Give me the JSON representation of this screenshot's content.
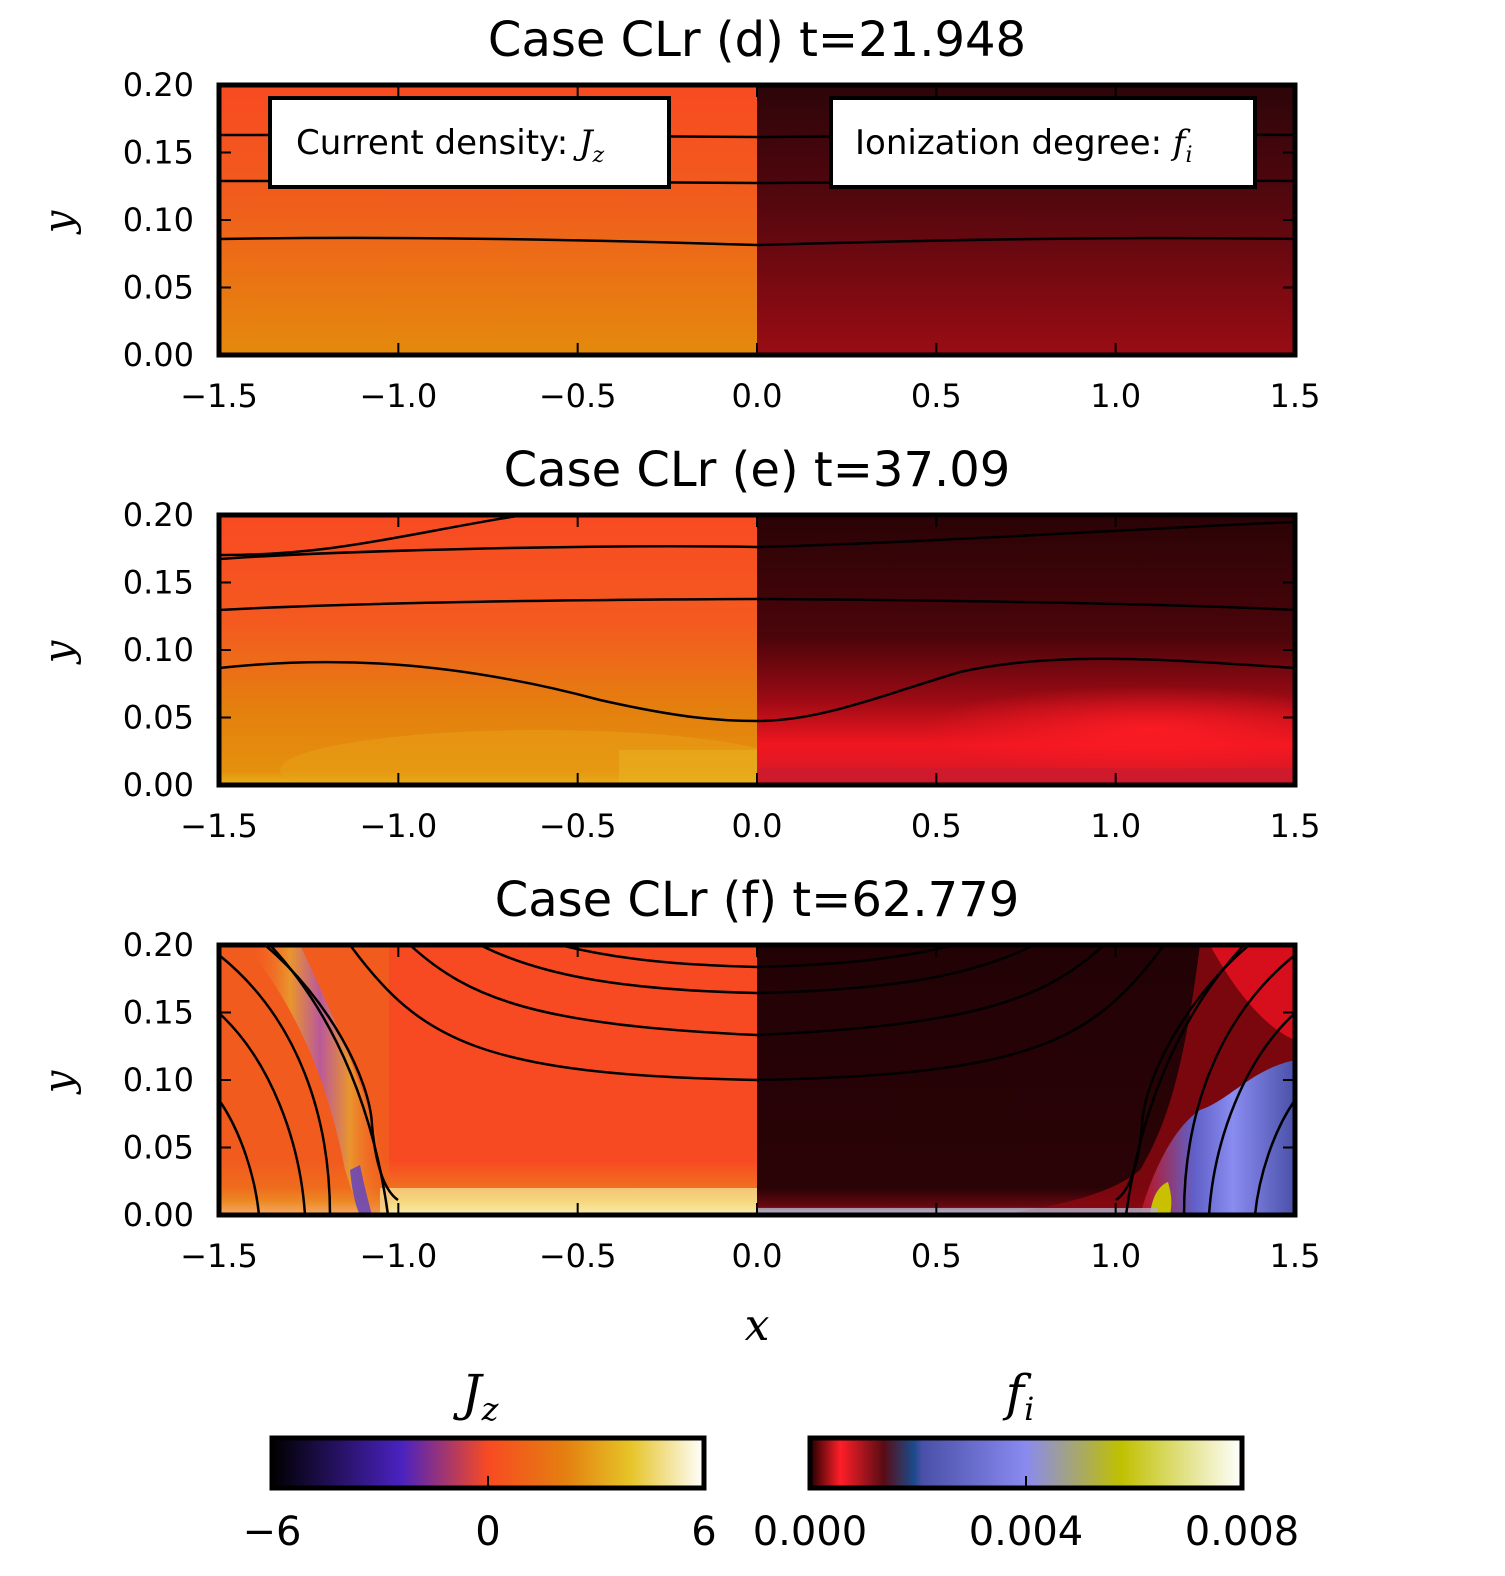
{
  "chart_data": {
    "type": "heatmap",
    "panels": [
      {
        "title": "Case CLr (d) t=21.948",
        "left_field": "J_z",
        "right_field": "f_i",
        "xlim": [
          -1.5,
          1.5
        ],
        "ylim": [
          0.0,
          0.2
        ],
        "x_ticks": [
          "−1.5",
          "−1.0",
          "−0.5",
          "0.0",
          "0.5",
          "1.0",
          "1.5"
        ],
        "y_ticks": [
          "0.00",
          "0.05",
          "0.10",
          "0.15",
          "0.20"
        ],
        "ylabel": "y",
        "annotations": [
          {
            "text": "Current density: ",
            "math_base": "J",
            "math_sub": "z",
            "side": "left"
          },
          {
            "text": "Ionization degree: ",
            "math_base": "f",
            "math_sub": "i",
            "side": "right"
          }
        ],
        "field_lines": [
          {
            "y_edge": 0.16,
            "y_center": 0.16
          },
          {
            "y_edge": 0.128,
            "y_center": 0.128
          },
          {
            "y_edge": 0.086,
            "y_center": 0.082
          }
        ]
      },
      {
        "title": "Case CLr (e) t=37.09",
        "left_field": "J_z",
        "right_field": "f_i",
        "xlim": [
          -1.5,
          1.5
        ],
        "ylim": [
          0.0,
          0.2
        ],
        "x_ticks": [
          "−1.5",
          "−1.0",
          "−0.5",
          "0.0",
          "0.5",
          "1.0",
          "1.5"
        ],
        "y_ticks": [
          "0.00",
          "0.05",
          "0.10",
          "0.15",
          "0.20"
        ],
        "ylabel": "y",
        "field_lines": [
          {
            "y_edge": 0.168,
            "y_peak": 0.175,
            "y_center": 0.177
          },
          {
            "y_edge": 0.13,
            "y_peak": 0.135,
            "y_center": 0.138
          },
          {
            "y_edge": 0.086,
            "y_peak": 0.093,
            "y_center": 0.048
          },
          {
            "y_edge": 0.2,
            "y_peak": 0.2,
            "y_center": 0.2
          }
        ]
      },
      {
        "title": "Case CLr (f) t=62.779",
        "left_field": "J_z",
        "right_field": "f_i",
        "xlim": [
          -1.5,
          1.5
        ],
        "ylim": [
          0.0,
          0.2
        ],
        "x_ticks": [
          "−1.5",
          "−1.0",
          "−0.5",
          "0.0",
          "0.5",
          "1.0",
          "1.5"
        ],
        "y_ticks": [
          "0.00",
          "0.05",
          "0.10",
          "0.15",
          "0.20"
        ],
        "ylabel": "y",
        "xlabel": "x",
        "field_line_feet_x": [
          -1.39,
          -1.27,
          -1.04
        ],
        "field_line_center_y": [
          0.195,
          0.175,
          0.155,
          0.133,
          0.111,
          0.087,
          0.063,
          0.04
        ]
      }
    ],
    "colorbars": [
      {
        "label_base": "J",
        "label_sub": "z",
        "field": "J_z",
        "range": [
          -6,
          6
        ],
        "ticks": [
          "−6",
          "0",
          "6"
        ],
        "colors": [
          "#000000",
          "#4a22c0",
          "#f84a22",
          "#e48010",
          "#e6c428",
          "#ffffff"
        ]
      },
      {
        "label_base": "f",
        "label_sub": "i",
        "field": "f_i",
        "range": [
          0.0,
          0.008
        ],
        "ticks": [
          "0.000",
          "0.004",
          "0.008"
        ],
        "colors": [
          "#200000",
          "#ff1e28",
          "#2a1018",
          "#1a4a8a",
          "#8a8af0",
          "#c0c000",
          "#ffffff"
        ]
      }
    ]
  }
}
